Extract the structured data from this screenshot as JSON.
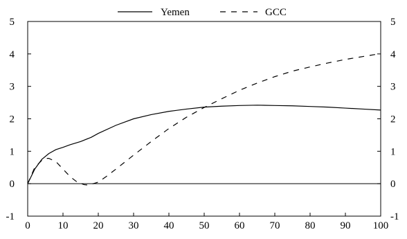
{
  "chart_data": {
    "type": "line",
    "xlim": [
      0,
      100
    ],
    "ylim": [
      -1,
      5
    ],
    "x_ticks": [
      "0",
      "10",
      "20",
      "30",
      "40",
      "50",
      "60",
      "70",
      "80",
      "90",
      "100"
    ],
    "y_ticks": [
      "-1",
      "0",
      "1",
      "2",
      "3",
      "4",
      "5"
    ],
    "legend_position": "top-center",
    "zero_line": true,
    "grid": false,
    "series": [
      {
        "name": "Yemen",
        "dash": "solid",
        "color": "#000000",
        "x": [
          0,
          2,
          4,
          6,
          8,
          10,
          12,
          15,
          18,
          20,
          25,
          30,
          35,
          40,
          45,
          50,
          55,
          60,
          65,
          70,
          75,
          80,
          85,
          90,
          95,
          100
        ],
        "y": [
          0,
          0.45,
          0.75,
          0.93,
          1.05,
          1.12,
          1.2,
          1.3,
          1.43,
          1.55,
          1.8,
          2.0,
          2.13,
          2.23,
          2.3,
          2.36,
          2.39,
          2.41,
          2.42,
          2.41,
          2.4,
          2.38,
          2.36,
          2.33,
          2.3,
          2.27
        ]
      },
      {
        "name": "GCC",
        "dash": "dashed",
        "color": "#000000",
        "x": [
          0,
          2,
          4,
          5,
          6,
          8,
          10,
          12,
          14,
          16,
          17,
          18,
          20,
          22,
          25,
          30,
          35,
          40,
          45,
          50,
          55,
          60,
          65,
          70,
          75,
          80,
          85,
          90,
          95,
          100
        ],
        "y": [
          0,
          0.5,
          0.72,
          0.78,
          0.78,
          0.68,
          0.45,
          0.22,
          0.05,
          -0.03,
          -0.04,
          -0.02,
          0.05,
          0.2,
          0.45,
          0.88,
          1.3,
          1.7,
          2.05,
          2.35,
          2.62,
          2.88,
          3.1,
          3.3,
          3.47,
          3.6,
          3.72,
          3.83,
          3.92,
          4.01
        ]
      }
    ]
  }
}
